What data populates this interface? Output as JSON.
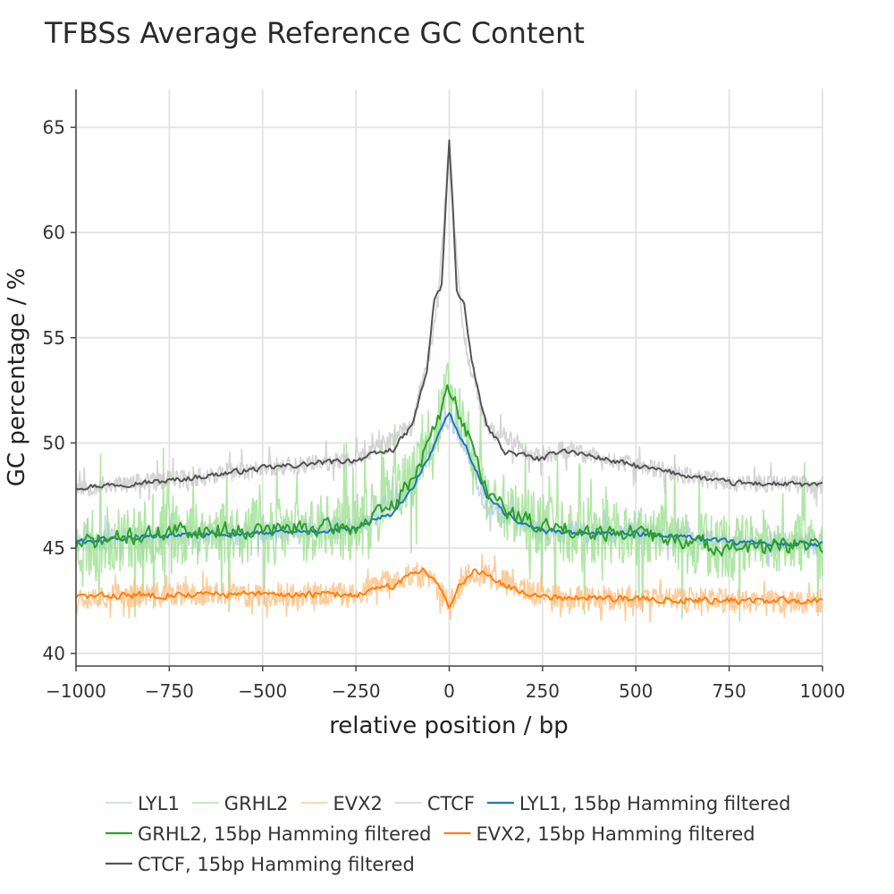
{
  "chart_data": {
    "type": "line",
    "title": "TFBSs Average Reference GC Content",
    "xlabel": "relative position / bp",
    "ylabel": "GC percentage / %",
    "xlim": [
      -1000,
      1000
    ],
    "ylim": [
      39.4,
      66.8
    ],
    "xticks": [
      -1000,
      -750,
      -500,
      -250,
      0,
      250,
      500,
      750,
      1000
    ],
    "xtick_labels": [
      "−1000",
      "−750",
      "−500",
      "−250",
      "0",
      "250",
      "500",
      "750",
      "1000"
    ],
    "yticks": [
      40,
      45,
      50,
      55,
      60,
      65
    ],
    "ytick_labels": [
      "40",
      "45",
      "50",
      "55",
      "60",
      "65"
    ],
    "grid": true,
    "legend_position": "bottom",
    "series": [
      {
        "name": "LYL1",
        "color": "#aec7e8",
        "style": "raw",
        "x": [
          -1000,
          -750,
          -500,
          -250,
          -100,
          -50,
          0,
          50,
          100,
          250,
          500,
          750,
          1000
        ],
        "y": [
          45.3,
          45.6,
          45.7,
          46.0,
          48.0,
          49.6,
          51.3,
          49.5,
          47.0,
          45.8,
          45.7,
          45.3,
          45.2
        ]
      },
      {
        "name": "GRHL2",
        "color": "#98df8a",
        "style": "raw",
        "x": [
          -1000,
          -750,
          -500,
          -250,
          -100,
          -50,
          0,
          50,
          100,
          250,
          500,
          750,
          1000
        ],
        "y": [
          45.2,
          45.8,
          45.8,
          46.0,
          48.2,
          50.2,
          52.5,
          50.5,
          47.5,
          46.0,
          45.7,
          45.0,
          45.1
        ]
      },
      {
        "name": "EVX2",
        "color": "#ffbb78",
        "style": "raw",
        "x": [
          -1000,
          -750,
          -500,
          -250,
          -100,
          -50,
          0,
          50,
          100,
          250,
          500,
          750,
          1000
        ],
        "y": [
          42.7,
          42.8,
          42.8,
          42.8,
          43.8,
          43.5,
          42.3,
          43.8,
          43.7,
          42.7,
          42.6,
          42.5,
          42.5
        ]
      },
      {
        "name": "CTCF",
        "color": "#c7c7c7",
        "style": "raw",
        "x": [
          -1000,
          -750,
          -500,
          -250,
          -100,
          -50,
          -30,
          0,
          30,
          50,
          100,
          250,
          300,
          500,
          750,
          1000
        ],
        "y": [
          47.9,
          48.2,
          48.8,
          49.2,
          50.8,
          54.5,
          56.8,
          64.3,
          56.6,
          54.0,
          50.8,
          49.2,
          49.7,
          48.9,
          48.1,
          48.0
        ]
      },
      {
        "name": "LYL1, 15bp Hamming filtered",
        "color": "#1f77b4",
        "style": "smooth",
        "x": [
          -1000,
          -750,
          -500,
          -250,
          -150,
          -100,
          -50,
          0,
          50,
          100,
          150,
          250,
          500,
          750,
          1000
        ],
        "y": [
          45.3,
          45.6,
          45.7,
          45.9,
          46.7,
          47.8,
          49.5,
          51.4,
          49.6,
          47.5,
          46.6,
          45.8,
          45.7,
          45.3,
          45.2
        ]
      },
      {
        "name": "GRHL2, 15bp Hamming filtered",
        "color": "#2ca02c",
        "style": "smooth",
        "x": [
          -1000,
          -750,
          -500,
          -250,
          -150,
          -100,
          -50,
          0,
          50,
          100,
          150,
          250,
          500,
          750,
          1000
        ],
        "y": [
          45.2,
          45.8,
          45.9,
          46.0,
          47.0,
          48.3,
          50.2,
          52.6,
          50.4,
          47.8,
          46.8,
          46.0,
          45.7,
          45.0,
          45.1
        ]
      },
      {
        "name": "EVX2, 15bp Hamming filtered",
        "color": "#ff7f0e",
        "style": "smooth",
        "x": [
          -1000,
          -750,
          -500,
          -250,
          -150,
          -100,
          -70,
          -30,
          0,
          30,
          70,
          100,
          150,
          250,
          500,
          750,
          1000
        ],
        "y": [
          42.7,
          42.8,
          42.8,
          42.8,
          43.2,
          43.8,
          44.0,
          43.4,
          42.2,
          43.3,
          44.0,
          43.8,
          43.2,
          42.7,
          42.6,
          42.5,
          42.5
        ]
      },
      {
        "name": "CTCF, 15bp Hamming filtered",
        "color": "#555555",
        "style": "smooth",
        "x": [
          -1000,
          -750,
          -500,
          -250,
          -150,
          -100,
          -60,
          -40,
          -20,
          -10,
          0,
          10,
          20,
          40,
          60,
          100,
          150,
          250,
          300,
          500,
          750,
          1000
        ],
        "y": [
          47.9,
          48.2,
          48.8,
          49.2,
          49.7,
          50.8,
          53.4,
          56.8,
          57.5,
          61.0,
          64.3,
          61.0,
          57.3,
          56.6,
          53.8,
          50.8,
          49.6,
          49.2,
          49.7,
          48.9,
          48.1,
          48.0
        ]
      }
    ]
  }
}
